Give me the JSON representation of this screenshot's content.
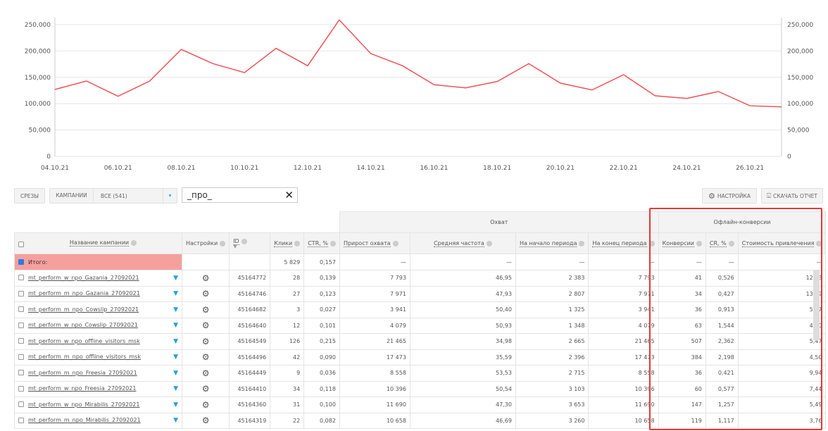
{
  "chart_data": {
    "type": "line",
    "x": [
      "04.10.21",
      "05.10.21",
      "06.10.21",
      "07.10.21",
      "08.10.21",
      "09.10.21",
      "10.10.21",
      "11.10.21",
      "12.10.21",
      "13.10.21",
      "14.10.21",
      "15.10.21",
      "16.10.21",
      "17.10.21",
      "18.10.21",
      "19.10.21",
      "20.10.21",
      "21.10.21",
      "22.10.21",
      "23.10.21",
      "24.10.21",
      "25.10.21",
      "26.10.21",
      "27.10.21"
    ],
    "values": [
      127000,
      143000,
      114000,
      143000,
      203000,
      176000,
      159000,
      205000,
      172000,
      259000,
      195000,
      172000,
      136000,
      130000,
      142000,
      176000,
      139000,
      126000,
      155000,
      115000,
      110000,
      123000,
      96000,
      94000
    ],
    "x_tick_labels": [
      "04.10.21",
      "06.10.21",
      "08.10.21",
      "10.10.21",
      "12.10.21",
      "14.10.21",
      "16.10.21",
      "18.10.21",
      "20.10.21",
      "22.10.21",
      "24.10.21",
      "26.10.21"
    ],
    "y_tick_labels": [
      "0",
      "50,000",
      "100,000",
      "150,000",
      "200,000",
      "250,000"
    ],
    "ylim": [
      0,
      250000
    ],
    "color": "#f0525a",
    "grid": true
  },
  "toolbar": {
    "slices": "Срезы",
    "campaigns": "Кампании",
    "filter": "ВСЕ (541)",
    "search": "_про_",
    "settings": "Настройка",
    "download": "Скачать отчет"
  },
  "groups": {
    "reach": "Охват",
    "offline": "Офлайн-конверсии"
  },
  "columns": [
    "Название кампании",
    "Настройки",
    "ID",
    "Клики",
    "CTR, %",
    "Прирост охвата",
    "Средняя частота",
    "На начало периода",
    "На конец периода",
    "Конверсии",
    "CR, %",
    "Стоимость привлечения"
  ],
  "total": {
    "label": "Итого:",
    "clicks": "5 829",
    "ctr": "0,157",
    "dash": "—"
  },
  "rows": [
    [
      "mt_perform_w_npo_Gazania_27092021",
      "45164772",
      "28",
      "0,139",
      "7 793",
      "46,95",
      "2 383",
      "7 793",
      "41",
      "0,526",
      "12,73"
    ],
    [
      "mt_perform_m_npo_Gazania_27092021",
      "45164746",
      "27",
      "0,123",
      "7 971",
      "47,93",
      "2 807",
      "7 971",
      "34",
      "0,427",
      "13,99"
    ],
    [
      "mt_perform_m_npo_Cowslip_27092021",
      "45164682",
      "3",
      "0,027",
      "3 941",
      "50,40",
      "1 325",
      "3 941",
      "36",
      "0,913",
      "5,27"
    ],
    [
      "mt_perform_w_npo_Cowslip_27092021",
      "45164640",
      "12",
      "0,101",
      "4 079",
      "50,93",
      "1 348",
      "4 079",
      "63",
      "1,544",
      "4,40"
    ],
    [
      "mt_perform_w_npo_offline_visitors_msk",
      "45164549",
      "126",
      "0,215",
      "21 465",
      "34,98",
      "2 665",
      "21 465",
      "507",
      "2,362",
      "5,47"
    ],
    [
      "mt_perform_m_npo_offline_visitors_msk",
      "45164496",
      "42",
      "0,090",
      "17 473",
      "35,59",
      "2 396",
      "17 473",
      "384",
      "2,198",
      "4,50"
    ],
    [
      "mt_perform_m_npo_Freesia_27092021",
      "45164449",
      "9",
      "0,036",
      "8 558",
      "53,53",
      "2 715",
      "8 558",
      "36",
      "0,421",
      "9,94"
    ],
    [
      "mt_perform_w_npo_Freesia_27092021",
      "45164410",
      "34",
      "0,118",
      "10 396",
      "50,54",
      "3 103",
      "10 396",
      "60",
      "0,577",
      "7,44"
    ],
    [
      "mt_perform_w_npo_Mirabilis_27092021",
      "45164360",
      "31",
      "0,100",
      "11 690",
      "47,30",
      "3 653",
      "11 690",
      "147",
      "1,257",
      "5,49"
    ],
    [
      "mt_perform_m_npo_Mirabilis_27092021",
      "45164319",
      "22",
      "0,082",
      "10 658",
      "46,69",
      "3 260",
      "10 658",
      "119",
      "1,117",
      "3,76"
    ]
  ]
}
